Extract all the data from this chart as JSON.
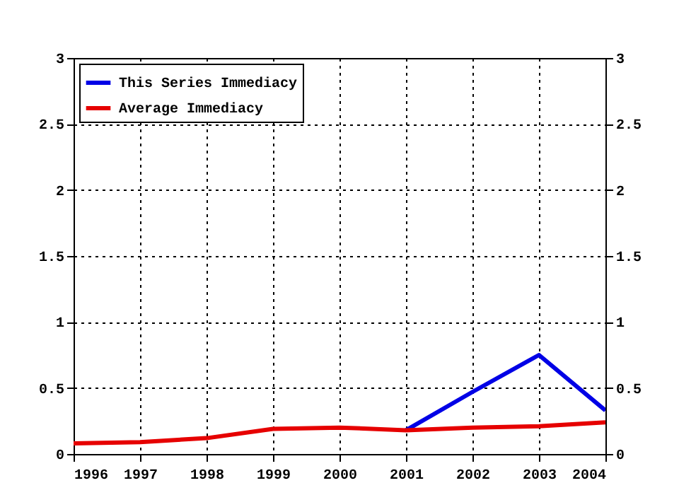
{
  "chart_data": {
    "type": "line",
    "x": [
      1996,
      1997,
      1998,
      1999,
      2000,
      2001,
      2002,
      2003,
      2004
    ],
    "series": [
      {
        "name": "This Series Immediacy",
        "color": "#0000e6",
        "values": [
          null,
          null,
          null,
          null,
          null,
          0.18,
          0.47,
          0.75,
          0.33
        ]
      },
      {
        "name": "Average Immediacy",
        "color": "#e60000",
        "values": [
          0.08,
          0.09,
          0.12,
          0.19,
          0.2,
          0.18,
          0.2,
          0.21,
          0.24
        ]
      }
    ],
    "xlim": [
      1996,
      2004
    ],
    "xticks": [
      1996,
      1997,
      1998,
      1999,
      2000,
      2001,
      2002,
      2003,
      2004
    ],
    "ylim": [
      0,
      3
    ],
    "yticks": [
      0,
      0.5,
      1,
      1.5,
      2,
      2.5,
      3
    ],
    "y2lim": [
      0,
      3
    ],
    "y2ticks": [
      0,
      0.5,
      1,
      1.5,
      2,
      2.5,
      3
    ],
    "grid": true,
    "legend": "top left",
    "line_style": "solid",
    "marker": "none"
  }
}
